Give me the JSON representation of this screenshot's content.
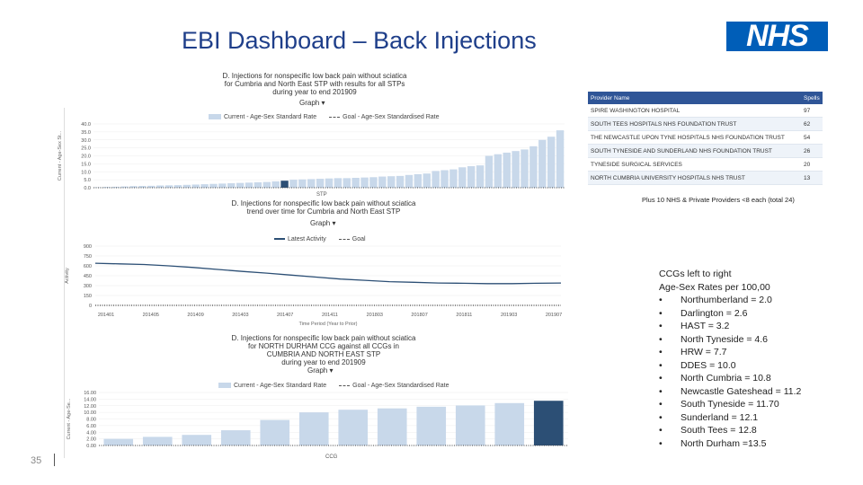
{
  "slide": {
    "title": "EBI Dashboard – Back Injections",
    "logo_text": "NHS",
    "page_number": "35"
  },
  "chart1": {
    "title_lines": [
      "D. Injections for nonspecific low back pain without sciatica",
      "for Cumbria and North East STP with results for all STPs",
      "during year to end 201909"
    ],
    "graph_button": "Graph",
    "legend_current": "Current - Age-Sex Standard Rate",
    "legend_goal": "Goal - Age-Sex Standardised Rate",
    "y_axis_label": "Current - Age-Sex St...",
    "x_label": "STP"
  },
  "chart2": {
    "title_lines": [
      "D. Injections for nonspecific low back pain without sciatica",
      "trend over time for Cumbria and North East STP"
    ],
    "graph_button": "Graph",
    "legend_latest": "Latest Activity",
    "legend_goal": "Goal",
    "y_axis_label": "Activity",
    "x_label": "Time Period (Year to Prior)"
  },
  "chart3": {
    "title_lines": [
      "D. Injections for nonspecific low back pain without sciatica",
      "for NORTH DURHAM CCG against all CCGs in",
      "CUMBRIA AND NORTH EAST STP",
      "during year to end 201909"
    ],
    "graph_button": "Graph",
    "legend_current": "Current - Age-Sex Standard Rate",
    "legend_goal": "Goal - Age-Sex Standardised Rate",
    "y_axis_label": "Current - Age-Se...",
    "x_label": "CCG"
  },
  "providers": {
    "header_name": "Provider Name",
    "header_spells": "Spells",
    "rows": [
      {
        "name": "SPIRE WASHINGTON HOSPITAL",
        "spells": "97"
      },
      {
        "name": "SOUTH TEES HOSPITALS NHS FOUNDATION TRUST",
        "spells": "62"
      },
      {
        "name": "THE NEWCASTLE UPON TYNE HOSPITALS NHS FOUNDATION TRUST",
        "spells": "54"
      },
      {
        "name": "SOUTH TYNESIDE AND SUNDERLAND NHS FOUNDATION TRUST",
        "spells": "26"
      },
      {
        "name": "TYNESIDE SURGICAL SERVICES",
        "spells": "20"
      },
      {
        "name": "NORTH CUMBRIA UNIVERSITY HOSPITALS NHS TRUST",
        "spells": "13"
      }
    ],
    "note": "Plus 10 NHS & Private Providers <8 each (total 24)"
  },
  "ccg_text": {
    "heading1": "CCGs left to right",
    "heading2": "Age-Sex Rates per 100,00",
    "items": [
      "Northumberland = 2.0",
      "Darlington = 2.6",
      "HAST = 3.2",
      "North Tyneside = 4.6",
      "HRW = 7.7",
      "DDES = 10.0",
      "North Cumbria = 10.8",
      "Newcastle Gateshead = 11.2",
      "South Tyneside = 11.70",
      "Sunderland = 12.1",
      "South Tees = 12.8",
      "North Durham =13.5"
    ]
  },
  "chart_data": [
    {
      "type": "bar",
      "title": "D. Injections for nonspecific low back pain without sciatica for Cumbria and North East STP with results for all STPs during year to end 201909",
      "xlabel": "STP",
      "ylabel": "Current - Age-Sex St...",
      "ylim": [
        0,
        40
      ],
      "y_ticks": [
        "0.0",
        "5.0",
        "10.0",
        "15.0",
        "20.0",
        "25.0",
        "30.0",
        "35.0",
        "40.0"
      ],
      "values": [
        0.3,
        0.5,
        0.6,
        0.8,
        1.0,
        1.1,
        1.2,
        1.4,
        1.5,
        1.6,
        1.8,
        2.0,
        2.2,
        2.4,
        2.6,
        2.8,
        3.0,
        3.2,
        3.4,
        3.6,
        4.0,
        4.4,
        5.0,
        5.2,
        5.4,
        5.6,
        5.8,
        6.0,
        6.0,
        6.2,
        6.4,
        6.6,
        7.0,
        7.2,
        7.4,
        8.0,
        8.5,
        8.9,
        10.5,
        11.0,
        11.5,
        12.8,
        13.5,
        14.0,
        20.0,
        21.0,
        22.0,
        23.0,
        24.0,
        26.0,
        30.0,
        32.0,
        36.0
      ],
      "highlight_index": 21,
      "colors": {
        "bar": "#c8d8ea",
        "highlight": "#2c4f75"
      }
    },
    {
      "type": "line",
      "title": "D. Injections for nonspecific low back pain without sciatica trend over time for Cumbria and North East STP",
      "xlabel": "Time Period (Year to Prior)",
      "ylabel": "Activity",
      "ylim": [
        0,
        900
      ],
      "y_ticks": [
        "0",
        "150",
        "300",
        "450",
        "600",
        "750",
        "900"
      ],
      "x_ticks": [
        "201401",
        "201405",
        "201409",
        "201403",
        "201407",
        "201411",
        "201803",
        "201807",
        "201811",
        "201903",
        "201907"
      ],
      "series": [
        {
          "name": "Latest Activity",
          "values": [
            640,
            630,
            620,
            600,
            575,
            545,
            515,
            490,
            460,
            430,
            400,
            380,
            360,
            350,
            340,
            335,
            330,
            330,
            335,
            340
          ]
        }
      ],
      "colors": {
        "line": "#2c4f75"
      }
    },
    {
      "type": "bar",
      "title": "D. Injections for nonspecific low back pain without sciatica for NORTH DURHAM CCG against all CCGs in CUMBRIA AND NORTH EAST STP during year to end 201909",
      "xlabel": "CCG",
      "ylabel": "Current - Age-Se...",
      "ylim": [
        0,
        16
      ],
      "y_ticks": [
        "0.00",
        "2.00",
        "4.00",
        "6.00",
        "8.00",
        "10.00",
        "12.00",
        "14.00",
        "16.00"
      ],
      "values": [
        2.0,
        2.6,
        3.2,
        4.6,
        7.7,
        10.0,
        10.8,
        11.2,
        11.7,
        12.1,
        12.8,
        13.5
      ],
      "highlight_index": 11,
      "colors": {
        "bar": "#c8d8ea",
        "highlight": "#2c4f75"
      }
    }
  ]
}
